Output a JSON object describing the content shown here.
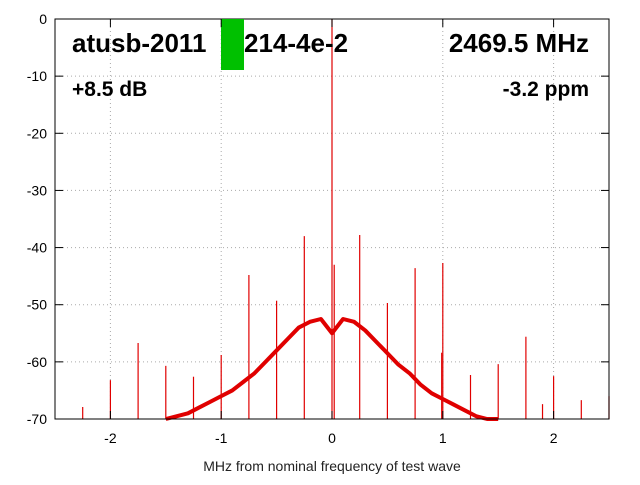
{
  "chart_data": {
    "type": "line",
    "xlabel": "MHz from nominal frequency of test wave",
    "annotations": [
      "atusb-2011",
      "214-4e-2",
      "2469.5 MHz",
      "+8.5 dB",
      "-3.2 ppm"
    ],
    "xlim": [
      -2.5,
      2.5
    ],
    "xticks": [
      -2,
      -1,
      0,
      1,
      2
    ],
    "ylim": [
      -70,
      0
    ],
    "yticks": [
      0,
      -10,
      -20,
      -30,
      -40,
      -50,
      -60,
      -70
    ],
    "grid": true,
    "series": [
      {
        "color": "#e00000",
        "x": [
          -1.5,
          -1.4,
          -1.3,
          -1.2,
          -1.1,
          -1.0,
          -0.9,
          -0.8,
          -0.7,
          -0.6,
          -0.5,
          -0.4,
          -0.3,
          -0.2,
          -0.1,
          0,
          0.1,
          0.2,
          0.3,
          0.4,
          0.5,
          0.6,
          0.7,
          0.8,
          0.9,
          1.0,
          1.1,
          1.2,
          1.3,
          1.4,
          1.5
        ],
        "values": [
          -70,
          -69.5,
          -69,
          -68,
          -67,
          -66,
          -65,
          -63.5,
          -62,
          -60,
          -58,
          -56,
          -54,
          -53,
          -52.5,
          -55,
          -52.5,
          -53,
          -54.5,
          -56.5,
          -58.5,
          -60.5,
          -62,
          -64,
          -65.5,
          -66.5,
          -67.5,
          -68.5,
          -69.5,
          -70,
          -70
        ]
      }
    ],
    "spikes": {
      "color": "#e00000",
      "x": [
        -2.25,
        -2.0,
        -1.75,
        -1.5,
        -1.25,
        -1.0,
        -0.75,
        -0.5,
        -0.25,
        0,
        0.02,
        0.25,
        0.5,
        0.75,
        0.99,
        1.0,
        1.25,
        1.5,
        1.75,
        1.9,
        2.0,
        2.25,
        2.5
      ],
      "values": [
        -67.9,
        -63.2,
        -56.7,
        -60.7,
        -62.6,
        -58.8,
        -44.8,
        -49.3,
        -38,
        0,
        -43,
        -37.8,
        -49.7,
        -43.6,
        -58.4,
        -42.7,
        -62.3,
        -60.4,
        -55.6,
        -67.4,
        -62.5,
        -66.7,
        -66
      ]
    }
  }
}
